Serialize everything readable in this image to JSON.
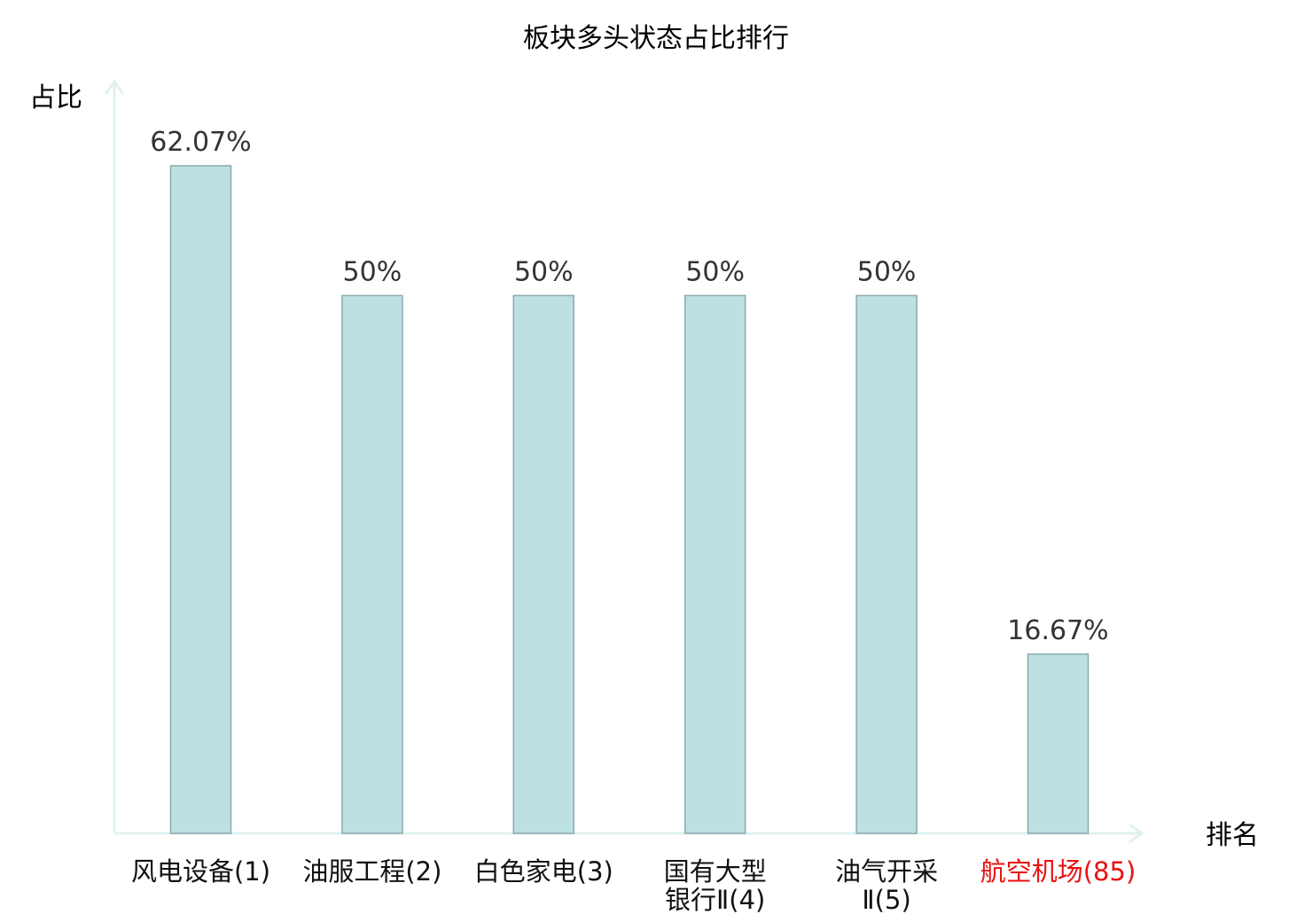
{
  "chart_data": {
    "type": "bar",
    "title": "板块多头状态占比排行",
    "ylabel": "占比",
    "xlabel": "排名",
    "ylim": [
      0,
      70
    ],
    "categories": [
      {
        "lines": [
          "风电设备(1)"
        ],
        "highlight": false
      },
      {
        "lines": [
          "油服工程(2)"
        ],
        "highlight": false
      },
      {
        "lines": [
          "白色家电(3)"
        ],
        "highlight": false
      },
      {
        "lines": [
          "国有大型",
          "银行Ⅱ(4)"
        ],
        "highlight": false
      },
      {
        "lines": [
          "油气开采",
          "Ⅱ(5)"
        ],
        "highlight": false
      },
      {
        "lines": [
          "航空机场(85)"
        ],
        "highlight": true
      }
    ],
    "values": [
      62.07,
      50,
      50,
      50,
      50,
      16.67
    ],
    "value_labels": [
      "62.07%",
      "50%",
      "50%",
      "50%",
      "50%",
      "16.67%"
    ],
    "colors": {
      "bar_fill": "#bde1e3",
      "bar_stroke": "#8aaaae",
      "axis": "#e0f2ef",
      "highlight_text": "#e81010",
      "normal_text": "#111111"
    }
  }
}
